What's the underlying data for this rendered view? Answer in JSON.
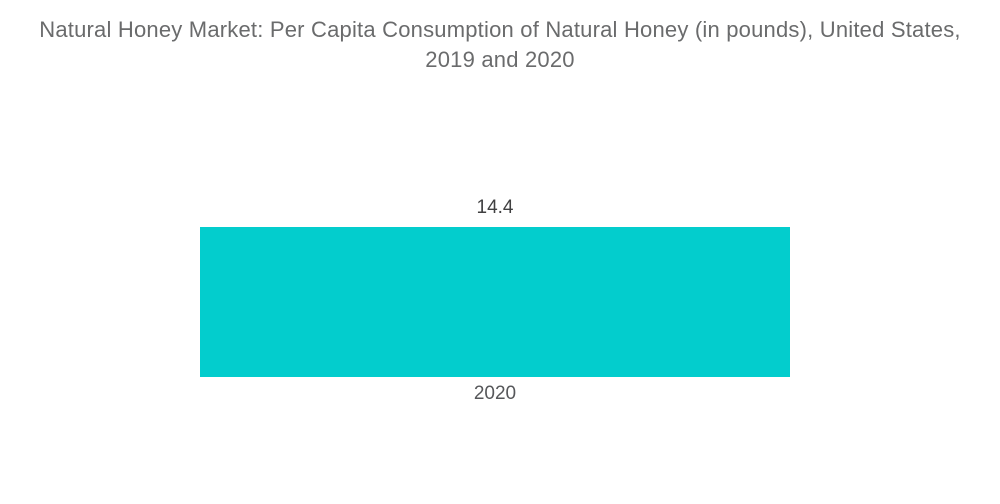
{
  "title": {
    "line1": "Natural Honey Market: Per Capita Consumption of Natural Honey (in pounds), United States,",
    "line2": "2019 and 2020"
  },
  "chart_data": {
    "type": "bar",
    "orientation": "vertical",
    "title": "Natural Honey Market: Per Capita Consumption of Natural Honey (in pounds), United States, 2019 and 2020",
    "categories": [
      "2020"
    ],
    "values": [
      14.4
    ],
    "value_labels": [
      "14.4"
    ],
    "xlabel": "",
    "ylabel": "",
    "ylim": [
      0,
      14.4
    ],
    "grid": false,
    "legend": "none",
    "bar_color": "#03cdcd"
  },
  "colors": {
    "background": "#ffffff",
    "title_text": "#6a6b6c",
    "value_text": "#404041",
    "category_text": "#56575a",
    "bar": "#03cdcd"
  }
}
